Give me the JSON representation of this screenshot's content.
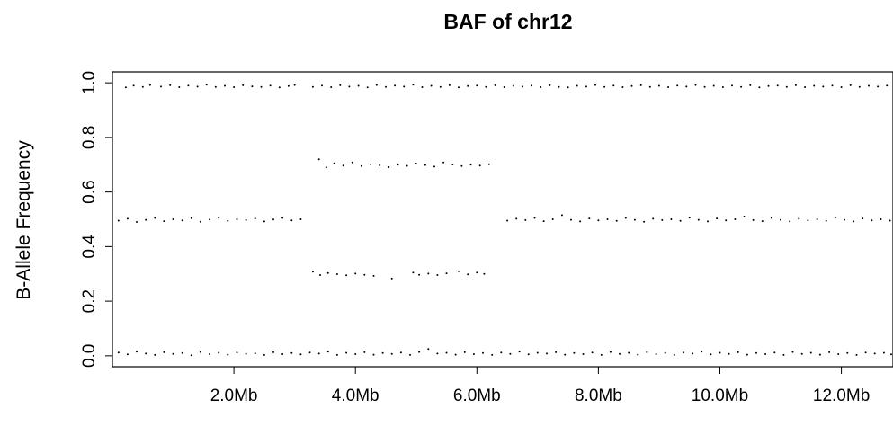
{
  "chart_data": {
    "type": "scatter",
    "title": "BAF of chr12",
    "xlabel": "",
    "ylabel": "B-Allele Frequency",
    "xlim": [
      0,
      12.85
    ],
    "ylim": [
      -0.04,
      1.04
    ],
    "x_unit": "Mb",
    "grid": false,
    "legend": "none",
    "point_color": "#000000",
    "x_ticks": [
      {
        "value": 2.0,
        "label": "2.0Mb"
      },
      {
        "value": 4.0,
        "label": "4.0Mb"
      },
      {
        "value": 6.0,
        "label": "6.0Mb"
      },
      {
        "value": 8.0,
        "label": "8.0Mb"
      },
      {
        "value": 10.0,
        "label": "10.0Mb"
      },
      {
        "value": 12.0,
        "label": "12.0Mb"
      }
    ],
    "y_ticks": [
      {
        "value": 0.0,
        "label": "0.0"
      },
      {
        "value": 0.2,
        "label": "0.2"
      },
      {
        "value": 0.4,
        "label": "0.4"
      },
      {
        "value": 0.6,
        "label": "0.6"
      },
      {
        "value": 0.8,
        "label": "0.8"
      },
      {
        "value": 1.0,
        "label": "1.0"
      }
    ],
    "points": [
      [
        0.22,
        0.983
      ],
      [
        0.35,
        0.99
      ],
      [
        0.5,
        0.985
      ],
      [
        0.62,
        0.992
      ],
      [
        0.8,
        0.986
      ],
      [
        0.95,
        0.991
      ],
      [
        1.1,
        0.984
      ],
      [
        1.25,
        0.99
      ],
      [
        1.4,
        0.986
      ],
      [
        1.55,
        0.993
      ],
      [
        1.7,
        0.985
      ],
      [
        1.85,
        0.989
      ],
      [
        2.0,
        0.984
      ],
      [
        2.15,
        0.991
      ],
      [
        2.3,
        0.987
      ],
      [
        2.45,
        0.985
      ],
      [
        2.6,
        0.99
      ],
      [
        2.75,
        0.983
      ],
      [
        2.9,
        0.988
      ],
      [
        3.0,
        0.992
      ],
      [
        3.3,
        0.985
      ],
      [
        3.45,
        0.99
      ],
      [
        3.6,
        0.984
      ],
      [
        3.75,
        0.991
      ],
      [
        3.9,
        0.986
      ],
      [
        4.05,
        0.989
      ],
      [
        4.2,
        0.983
      ],
      [
        4.35,
        0.992
      ],
      [
        4.5,
        0.985
      ],
      [
        4.65,
        0.99
      ],
      [
        4.8,
        0.986
      ],
      [
        4.95,
        0.993
      ],
      [
        5.1,
        0.984
      ],
      [
        5.25,
        0.989
      ],
      [
        5.4,
        0.985
      ],
      [
        5.55,
        0.991
      ],
      [
        5.7,
        0.983
      ],
      [
        5.85,
        0.988
      ],
      [
        6.0,
        0.99
      ],
      [
        6.15,
        0.985
      ],
      [
        6.3,
        0.991
      ],
      [
        6.45,
        0.984
      ],
      [
        6.6,
        0.989
      ],
      [
        6.75,
        0.986
      ],
      [
        6.9,
        0.99
      ],
      [
        7.05,
        0.984
      ],
      [
        7.2,
        0.991
      ],
      [
        7.35,
        0.985
      ],
      [
        7.5,
        0.983
      ],
      [
        7.65,
        0.989
      ],
      [
        7.8,
        0.986
      ],
      [
        7.95,
        0.992
      ],
      [
        8.1,
        0.985
      ],
      [
        8.25,
        0.99
      ],
      [
        8.4,
        0.984
      ],
      [
        8.55,
        0.988
      ],
      [
        8.7,
        0.991
      ],
      [
        8.85,
        0.985
      ],
      [
        9.0,
        0.989
      ],
      [
        9.15,
        0.984
      ],
      [
        9.3,
        0.99
      ],
      [
        9.45,
        0.986
      ],
      [
        9.6,
        0.992
      ],
      [
        9.75,
        0.985
      ],
      [
        9.9,
        0.989
      ],
      [
        10.05,
        0.984
      ],
      [
        10.2,
        0.99
      ],
      [
        10.35,
        0.985
      ],
      [
        10.5,
        0.991
      ],
      [
        10.65,
        0.983
      ],
      [
        10.8,
        0.988
      ],
      [
        10.95,
        0.99
      ],
      [
        11.1,
        0.985
      ],
      [
        11.25,
        0.991
      ],
      [
        11.4,
        0.984
      ],
      [
        11.55,
        0.989
      ],
      [
        11.7,
        0.986
      ],
      [
        11.85,
        0.99
      ],
      [
        12.0,
        0.984
      ],
      [
        12.15,
        0.991
      ],
      [
        12.3,
        0.985
      ],
      [
        12.45,
        0.989
      ],
      [
        12.6,
        0.986
      ],
      [
        12.75,
        0.99
      ],
      [
        0.1,
        0.495
      ],
      [
        0.25,
        0.502
      ],
      [
        0.4,
        0.49
      ],
      [
        0.55,
        0.498
      ],
      [
        0.7,
        0.505
      ],
      [
        0.85,
        0.493
      ],
      [
        1.0,
        0.5
      ],
      [
        1.15,
        0.496
      ],
      [
        1.3,
        0.504
      ],
      [
        1.45,
        0.491
      ],
      [
        1.6,
        0.499
      ],
      [
        1.75,
        0.506
      ],
      [
        1.9,
        0.494
      ],
      [
        2.05,
        0.5
      ],
      [
        2.2,
        0.497
      ],
      [
        2.35,
        0.503
      ],
      [
        2.5,
        0.492
      ],
      [
        2.65,
        0.499
      ],
      [
        2.8,
        0.505
      ],
      [
        2.95,
        0.496
      ],
      [
        3.1,
        0.5
      ],
      [
        6.5,
        0.495
      ],
      [
        6.65,
        0.502
      ],
      [
        6.8,
        0.497
      ],
      [
        6.95,
        0.505
      ],
      [
        7.1,
        0.493
      ],
      [
        7.25,
        0.5
      ],
      [
        7.4,
        0.515
      ],
      [
        7.55,
        0.498
      ],
      [
        7.7,
        0.492
      ],
      [
        7.85,
        0.503
      ],
      [
        8.0,
        0.496
      ],
      [
        8.15,
        0.5
      ],
      [
        8.3,
        0.494
      ],
      [
        8.45,
        0.505
      ],
      [
        8.6,
        0.498
      ],
      [
        8.75,
        0.491
      ],
      [
        8.9,
        0.502
      ],
      [
        9.05,
        0.497
      ],
      [
        9.2,
        0.5
      ],
      [
        9.35,
        0.494
      ],
      [
        9.5,
        0.506
      ],
      [
        9.65,
        0.498
      ],
      [
        9.8,
        0.492
      ],
      [
        9.95,
        0.503
      ],
      [
        10.1,
        0.496
      ],
      [
        10.25,
        0.5
      ],
      [
        10.4,
        0.51
      ],
      [
        10.55,
        0.497
      ],
      [
        10.7,
        0.493
      ],
      [
        10.85,
        0.505
      ],
      [
        11.0,
        0.498
      ],
      [
        11.15,
        0.492
      ],
      [
        11.3,
        0.502
      ],
      [
        11.45,
        0.496
      ],
      [
        11.6,
        0.5
      ],
      [
        11.75,
        0.494
      ],
      [
        11.9,
        0.506
      ],
      [
        12.05,
        0.498
      ],
      [
        12.2,
        0.492
      ],
      [
        12.35,
        0.503
      ],
      [
        12.5,
        0.496
      ],
      [
        12.65,
        0.5
      ],
      [
        12.8,
        0.495
      ],
      [
        3.4,
        0.72
      ],
      [
        3.52,
        0.69
      ],
      [
        3.65,
        0.705
      ],
      [
        3.8,
        0.697
      ],
      [
        3.95,
        0.708
      ],
      [
        4.1,
        0.695
      ],
      [
        4.25,
        0.702
      ],
      [
        4.4,
        0.698
      ],
      [
        4.55,
        0.691
      ],
      [
        4.7,
        0.7
      ],
      [
        4.85,
        0.696
      ],
      [
        5.0,
        0.704
      ],
      [
        5.15,
        0.699
      ],
      [
        5.3,
        0.693
      ],
      [
        5.45,
        0.708
      ],
      [
        5.6,
        0.701
      ],
      [
        5.75,
        0.695
      ],
      [
        5.9,
        0.7
      ],
      [
        6.05,
        0.697
      ],
      [
        6.2,
        0.702
      ],
      [
        3.3,
        0.308
      ],
      [
        3.42,
        0.296
      ],
      [
        3.55,
        0.303
      ],
      [
        3.7,
        0.299
      ],
      [
        3.85,
        0.295
      ],
      [
        4.0,
        0.301
      ],
      [
        4.15,
        0.297
      ],
      [
        4.3,
        0.293
      ],
      [
        4.6,
        0.283
      ],
      [
        4.95,
        0.305
      ],
      [
        5.05,
        0.297
      ],
      [
        5.2,
        0.301
      ],
      [
        5.35,
        0.296
      ],
      [
        5.5,
        0.302
      ],
      [
        5.7,
        0.31
      ],
      [
        5.85,
        0.298
      ],
      [
        6.0,
        0.305
      ],
      [
        6.12,
        0.3
      ],
      [
        0.1,
        0.012
      ],
      [
        0.25,
        0.005
      ],
      [
        0.4,
        0.015
      ],
      [
        0.55,
        0.008
      ],
      [
        0.7,
        0.003
      ],
      [
        0.85,
        0.013
      ],
      [
        1.0,
        0.007
      ],
      [
        1.15,
        0.01
      ],
      [
        1.3,
        0.002
      ],
      [
        1.45,
        0.014
      ],
      [
        1.6,
        0.006
      ],
      [
        1.75,
        0.011
      ],
      [
        1.9,
        0.004
      ],
      [
        2.05,
        0.012
      ],
      [
        2.2,
        0.007
      ],
      [
        2.35,
        0.009
      ],
      [
        2.5,
        0.003
      ],
      [
        2.65,
        0.013
      ],
      [
        2.8,
        0.006
      ],
      [
        2.95,
        0.01
      ],
      [
        3.1,
        0.005
      ],
      [
        3.25,
        0.012
      ],
      [
        3.4,
        0.008
      ],
      [
        3.55,
        0.015
      ],
      [
        3.7,
        0.003
      ],
      [
        3.85,
        0.011
      ],
      [
        4.0,
        0.006
      ],
      [
        4.15,
        0.013
      ],
      [
        4.3,
        0.004
      ],
      [
        4.45,
        0.01
      ],
      [
        4.6,
        0.007
      ],
      [
        4.75,
        0.012
      ],
      [
        4.9,
        0.003
      ],
      [
        5.05,
        0.014
      ],
      [
        5.2,
        0.025
      ],
      [
        5.35,
        0.008
      ],
      [
        5.5,
        0.011
      ],
      [
        5.65,
        0.004
      ],
      [
        5.8,
        0.013
      ],
      [
        5.95,
        0.006
      ],
      [
        6.1,
        0.01
      ],
      [
        6.25,
        0.003
      ],
      [
        6.4,
        0.012
      ],
      [
        6.55,
        0.007
      ],
      [
        6.7,
        0.015
      ],
      [
        6.85,
        0.005
      ],
      [
        7.0,
        0.011
      ],
      [
        7.15,
        0.008
      ],
      [
        7.3,
        0.013
      ],
      [
        7.45,
        0.004
      ],
      [
        7.6,
        0.01
      ],
      [
        7.75,
        0.006
      ],
      [
        7.9,
        0.012
      ],
      [
        8.05,
        0.003
      ],
      [
        8.2,
        0.014
      ],
      [
        8.35,
        0.007
      ],
      [
        8.5,
        0.011
      ],
      [
        8.65,
        0.004
      ],
      [
        8.8,
        0.013
      ],
      [
        8.95,
        0.006
      ],
      [
        9.1,
        0.01
      ],
      [
        9.25,
        0.003
      ],
      [
        9.4,
        0.012
      ],
      [
        9.55,
        0.008
      ],
      [
        9.7,
        0.015
      ],
      [
        9.85,
        0.005
      ],
      [
        10.0,
        0.011
      ],
      [
        10.15,
        0.007
      ],
      [
        10.3,
        0.013
      ],
      [
        10.45,
        0.004
      ],
      [
        10.6,
        0.01
      ],
      [
        10.75,
        0.006
      ],
      [
        10.9,
        0.012
      ],
      [
        11.05,
        0.003
      ],
      [
        11.2,
        0.014
      ],
      [
        11.35,
        0.007
      ],
      [
        11.5,
        0.011
      ],
      [
        11.65,
        0.004
      ],
      [
        11.8,
        0.013
      ],
      [
        11.95,
        0.006
      ],
      [
        12.1,
        0.01
      ],
      [
        12.25,
        0.003
      ],
      [
        12.4,
        0.012
      ],
      [
        12.55,
        0.008
      ],
      [
        12.7,
        0.011
      ],
      [
        12.82,
        0.005
      ]
    ]
  }
}
